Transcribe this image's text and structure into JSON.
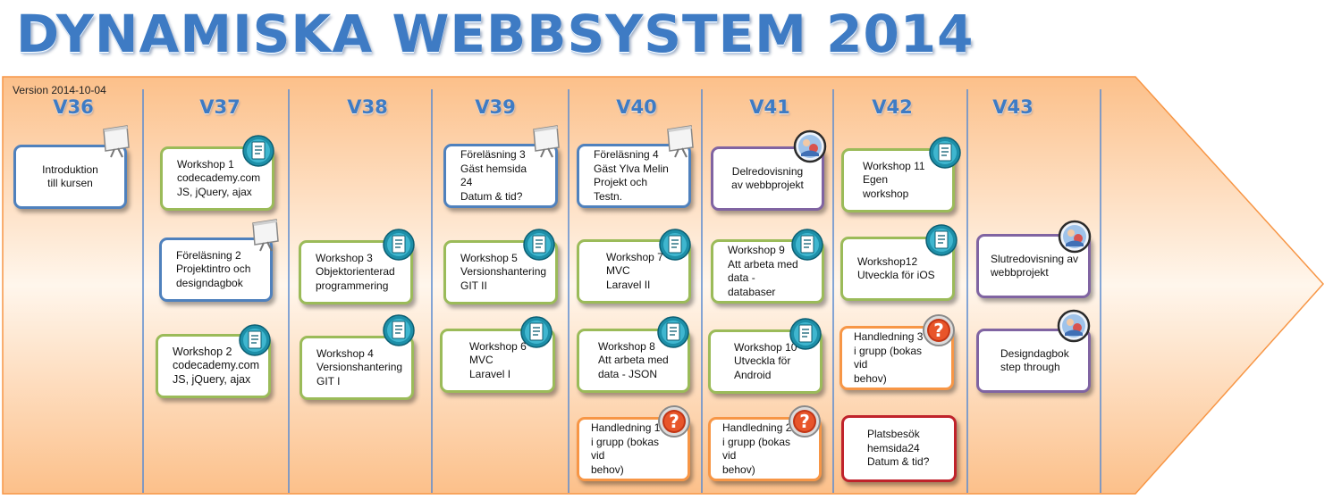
{
  "title": "DYNAMISKA WEBBSYSTEM 2014",
  "version": "Version 2014-10-04",
  "weeks": [
    "V36",
    "V37",
    "V38",
    "V39",
    "V40",
    "V41",
    "V42",
    "V43"
  ],
  "cards": {
    "v36_intro": "Introduktion\ntill kursen",
    "v37_ws1": "Workshop  1\ncodecademy.com\nJS, jQuery, ajax",
    "v37_lec2": "Föreläsning 2\nProjektintro och\ndesigndagbok",
    "v37_ws2": "Workshop 2\ncodecademy.com\nJS, jQuery, ajax",
    "v38_ws3": "Workshop 3\nObjektorienterad\nprogrammering",
    "v38_ws4": "Workshop 4\nVersionshantering\nGIT I",
    "v39_lec3": "Föreläsning 3\nGäst hemsida 24\nDatum & tid?",
    "v39_ws5": "Workshop 5\nVersionshantering\nGIT II",
    "v39_ws6": "Workshop 6\nMVC\nLaravel I",
    "v40_lec4": "Föreläsning 4\nGäst Ylva Melin\nProjekt och Testn.",
    "v40_ws7": "Workshop 7\nMVC\nLaravel II",
    "v40_ws8": "Workshop 8\nAtt  arbeta med\ndata - JSON",
    "v40_help1": "Handledning 1\ni grupp (bokas vid\nbehov)",
    "v41_del": "Delredovisning\nav webbprojekt",
    "v41_ws9": "Workshop 9\nAtt  arbeta med\ndata - databaser",
    "v41_ws10": "Workshop 10\nUtveckla för\nAndroid",
    "v41_help2": "Handledning 2\ni grupp (bokas vid\nbehov)",
    "v42_ws11": "Workshop 11\nEgen workshop",
    "v42_ws12": "Workshop12\nUtveckla för iOS",
    "v42_help3": "Handledning 3\ni grupp (bokas vid\nbehov)",
    "v42_visit": "Platsbesök\nhemsida24\nDatum & tid?",
    "v43_slut": "Slutredovisning av\nwebbprojekt",
    "v43_design": "Designdagbok\nstep through"
  },
  "icons": {
    "lecture": "presentation-board-icon",
    "workshop": "document-icon",
    "presentation": "presenter-icon",
    "help": "question-mark-icon"
  },
  "colors": {
    "title": "#3e7bc4",
    "arrow_fill_dark": "#fbbf88",
    "arrow_fill_light": "#fff6ec",
    "arrow_stroke": "#f79646",
    "lecture_border": "#4f81bd",
    "workshop_border": "#9bbb59",
    "presentation_border": "#8064a2",
    "help_border": "#f79646",
    "visit_border": "#c0232b",
    "divider": "#5b8bd0"
  }
}
